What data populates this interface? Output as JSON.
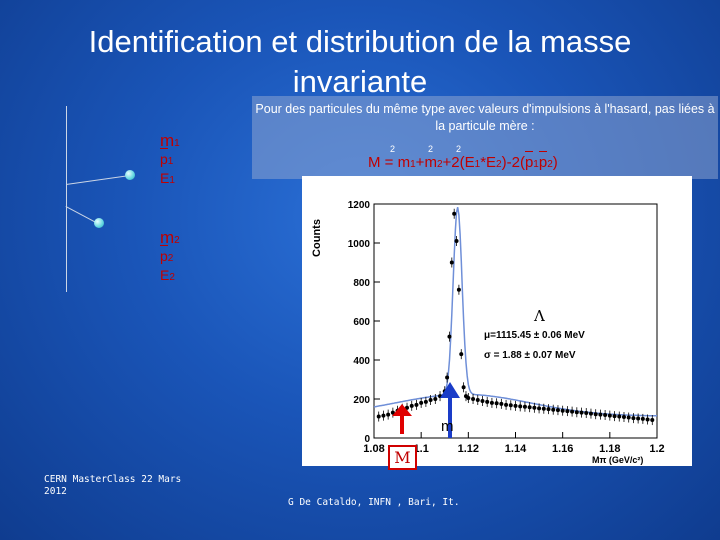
{
  "title": "Identification et distribution de la masse invariante",
  "left_diagram": {
    "particle1": {
      "m": "m",
      "m_sub": "1",
      "p": "p",
      "p_sub": "1",
      "e": "E",
      "e_sub": "1"
    },
    "particle2": {
      "m": "m",
      "m_sub": "2",
      "p": "p",
      "p_sub": "2",
      "e": "E",
      "e_sub": "2"
    }
  },
  "info_box": {
    "text": "Pour des particules du même type avec valeurs d'impulsions à l'hasard, pas liées à la particule mère :",
    "formula": {
      "lhs": "M",
      "eq": " = ",
      "t1": "m",
      "t1_sub": "1",
      "plus1": "+",
      "t2": "m",
      "t2_sub": "2",
      "t3": "+2(",
      "e1": "E",
      "e1_sub": "1",
      "star": "*",
      "e2": "E",
      "e2_sub": "2",
      "t4": ")-2(",
      "p1": "p",
      "p1_sub": "1",
      "p2": "p",
      "p2_sub": "2",
      "t5": ")",
      "sq": "2"
    }
  },
  "chart_data": {
    "type": "scatter",
    "ylabel": "Counts",
    "xlabel": "M",
    "xlabel_sub": "π",
    "xlabel_unit": "(GeV/c²)",
    "xlim": [
      1.08,
      1.2
    ],
    "ylim": [
      0,
      1200
    ],
    "xticks": [
      "1.08",
      "1.1",
      "1.12",
      "1.14",
      "1.16",
      "1.18",
      "1.2"
    ],
    "yticks": [
      "0",
      "200",
      "400",
      "600",
      "800",
      "1000",
      "1200"
    ],
    "annotation_symbol": "Λ",
    "annotation_mu": "μ=1115.45 ± 0.06 MeV",
    "annotation_sigma": "σ = 1.88 ± 0.07 MeV",
    "x": [
      1.082,
      1.084,
      1.086,
      1.088,
      1.09,
      1.092,
      1.094,
      1.096,
      1.098,
      1.1,
      1.102,
      1.104,
      1.106,
      1.108,
      1.11,
      1.111,
      1.112,
      1.113,
      1.114,
      1.115,
      1.116,
      1.117,
      1.118,
      1.119,
      1.12,
      1.122,
      1.124,
      1.126,
      1.128,
      1.13,
      1.132,
      1.134,
      1.136,
      1.138,
      1.14,
      1.142,
      1.144,
      1.146,
      1.148,
      1.15,
      1.152,
      1.154,
      1.156,
      1.158,
      1.16,
      1.162,
      1.164,
      1.166,
      1.168,
      1.17,
      1.172,
      1.174,
      1.176,
      1.178,
      1.18,
      1.182,
      1.184,
      1.186,
      1.188,
      1.19,
      1.192,
      1.194,
      1.196,
      1.198
    ],
    "y": [
      110,
      115,
      120,
      130,
      140,
      150,
      155,
      165,
      170,
      180,
      185,
      195,
      200,
      215,
      240,
      310,
      520,
      900,
      1150,
      1010,
      760,
      430,
      260,
      215,
      205,
      200,
      195,
      190,
      185,
      180,
      178,
      175,
      170,
      168,
      165,
      162,
      160,
      158,
      155,
      152,
      150,
      148,
      145,
      143,
      140,
      138,
      135,
      132,
      130,
      128,
      125,
      122,
      120,
      118,
      115,
      112,
      110,
      108,
      105,
      102,
      100,
      98,
      95,
      92
    ],
    "fit_color": "#6f8fd8"
  },
  "markers": {
    "m_box": "M",
    "arrow_label": "m"
  },
  "footer": {
    "left": "CERN MasterClass 22 Mars 2012",
    "center": "G De Cataldo, INFN , Bari, It."
  }
}
